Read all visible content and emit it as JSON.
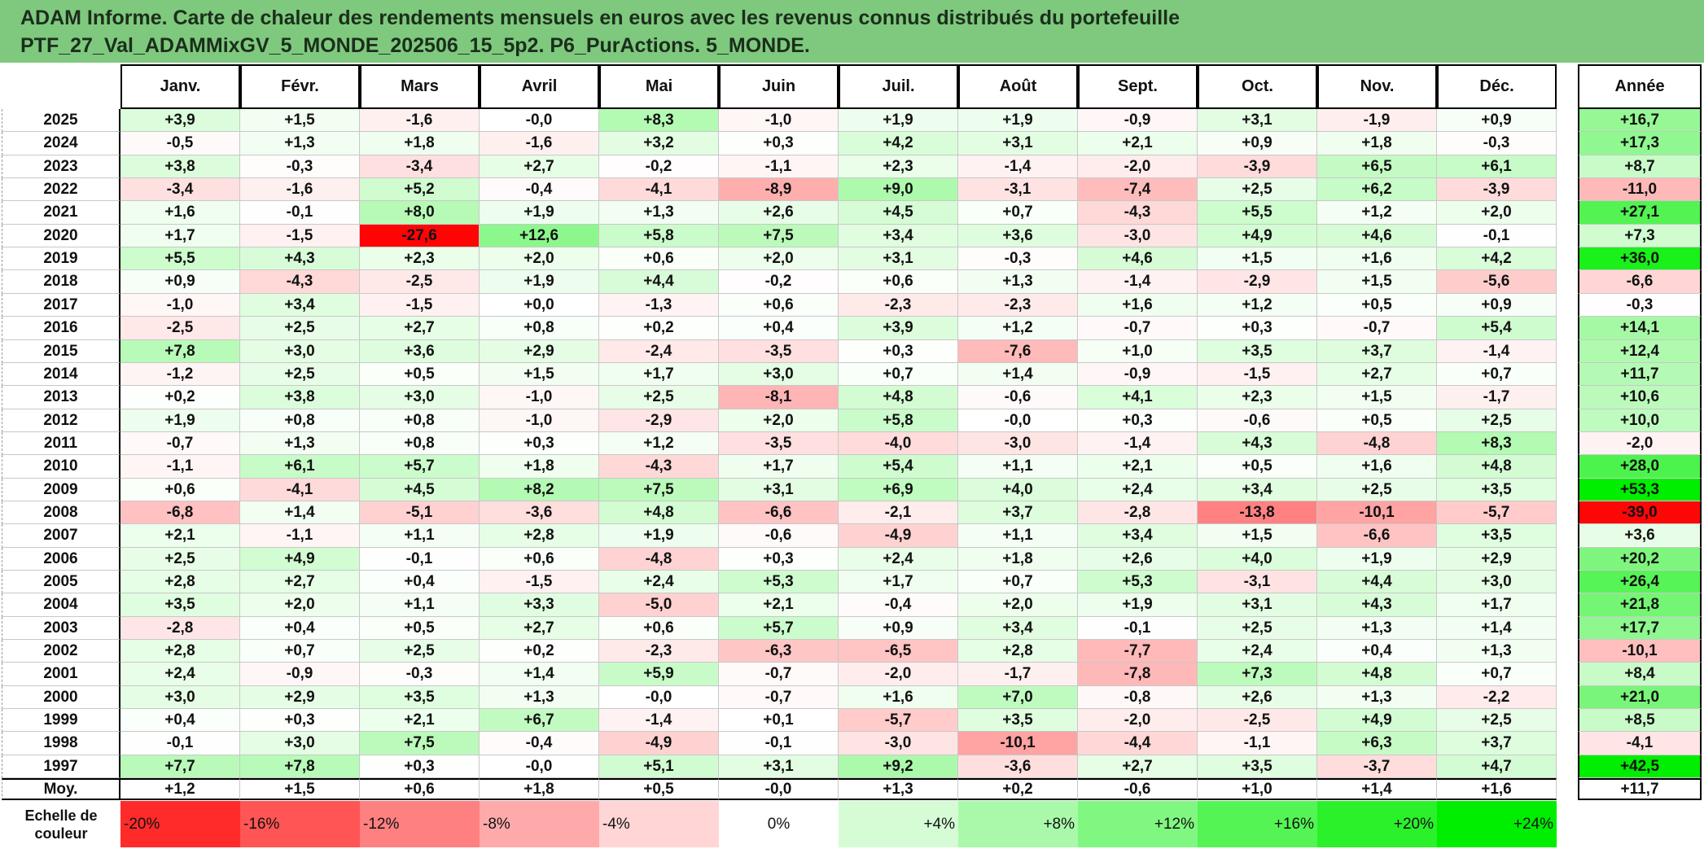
{
  "title": {
    "line1": "ADAM Informe. Carte de chaleur des rendements mensuels en euros avec les revenus connus distribués du portefeuille",
    "line2": "PTF_27_Val_ADAMMixGV_5_MONDE_202506_15_5p2. P6_PurActions. 5_MONDE."
  },
  "colors": {
    "title_bg": "#7ec97e",
    "negative_max": "#ff0000",
    "neutral": "#ffffff",
    "positive_max": "#00ee00"
  },
  "chart_data": {
    "type": "heatmap",
    "months": [
      "Janv.",
      "Févr.",
      "Mars",
      "Avril",
      "Mai",
      "Juin",
      "Juil.",
      "Août",
      "Sept.",
      "Oct.",
      "Nov.",
      "Déc."
    ],
    "year_header": "Année",
    "rows": [
      {
        "year": "2025",
        "values": [
          "+3,9",
          "+1,5",
          "-1,6",
          "-0,0",
          "+8,3",
          "-1,0",
          "+1,9",
          "+1,9",
          "-0,9",
          "+3,1",
          "-1,9",
          "+0,9"
        ],
        "annual": "+16,7"
      },
      {
        "year": "2024",
        "values": [
          "-0,5",
          "+1,3",
          "+1,8",
          "-1,6",
          "+3,2",
          "+0,3",
          "+4,2",
          "+3,1",
          "+2,1",
          "+0,9",
          "+1,8",
          "-0,3"
        ],
        "annual": "+17,3"
      },
      {
        "year": "2023",
        "values": [
          "+3,8",
          "-0,3",
          "-3,4",
          "+2,7",
          "-0,2",
          "-1,1",
          "+2,3",
          "-1,4",
          "-2,0",
          "-3,9",
          "+6,5",
          "+6,1"
        ],
        "annual": "+8,7"
      },
      {
        "year": "2022",
        "values": [
          "-3,4",
          "-1,6",
          "+5,2",
          "-0,4",
          "-4,1",
          "-8,9",
          "+9,0",
          "-3,1",
          "-7,4",
          "+2,5",
          "+6,2",
          "-3,9"
        ],
        "annual": "-11,0"
      },
      {
        "year": "2021",
        "values": [
          "+1,6",
          "-0,1",
          "+8,0",
          "+1,9",
          "+1,3",
          "+2,6",
          "+4,5",
          "+0,7",
          "-4,3",
          "+5,5",
          "+1,2",
          "+2,0"
        ],
        "annual": "+27,1"
      },
      {
        "year": "2020",
        "values": [
          "+1,7",
          "-1,5",
          "-27,6",
          "+12,6",
          "+5,8",
          "+7,5",
          "+3,4",
          "+3,6",
          "-3,0",
          "+4,9",
          "+4,6",
          "-0,1"
        ],
        "annual": "+7,3"
      },
      {
        "year": "2019",
        "values": [
          "+5,5",
          "+4,3",
          "+2,3",
          "+2,0",
          "+0,6",
          "+2,0",
          "+3,1",
          "-0,3",
          "+4,6",
          "+1,5",
          "+1,6",
          "+4,2"
        ],
        "annual": "+36,0"
      },
      {
        "year": "2018",
        "values": [
          "+0,9",
          "-4,3",
          "-2,5",
          "+1,9",
          "+4,4",
          "-0,2",
          "+0,6",
          "+1,3",
          "-1,4",
          "-2,9",
          "+1,5",
          "-5,6"
        ],
        "annual": "-6,6"
      },
      {
        "year": "2017",
        "values": [
          "-1,0",
          "+3,4",
          "-1,5",
          "+0,0",
          "-1,3",
          "+0,6",
          "-2,3",
          "-2,3",
          "+1,6",
          "+1,2",
          "+0,5",
          "+0,9"
        ],
        "annual": "-0,3"
      },
      {
        "year": "2016",
        "values": [
          "-2,5",
          "+2,5",
          "+2,7",
          "+0,8",
          "+0,2",
          "+0,4",
          "+3,9",
          "+1,2",
          "-0,7",
          "+0,3",
          "-0,7",
          "+5,4"
        ],
        "annual": "+14,1"
      },
      {
        "year": "2015",
        "values": [
          "+7,8",
          "+3,0",
          "+3,6",
          "+2,9",
          "-2,4",
          "-3,5",
          "+0,3",
          "-7,6",
          "+1,0",
          "+3,5",
          "+3,7",
          "-1,4"
        ],
        "annual": "+12,4"
      },
      {
        "year": "2014",
        "values": [
          "-1,2",
          "+2,5",
          "+0,5",
          "+1,5",
          "+1,7",
          "+3,0",
          "+0,7",
          "+1,4",
          "-0,9",
          "-1,5",
          "+2,7",
          "+0,7"
        ],
        "annual": "+11,7"
      },
      {
        "year": "2013",
        "values": [
          "+0,2",
          "+3,8",
          "+3,0",
          "-1,0",
          "+2,5",
          "-8,1",
          "+4,8",
          "-0,6",
          "+4,1",
          "+2,3",
          "+1,5",
          "-1,7"
        ],
        "annual": "+10,6"
      },
      {
        "year": "2012",
        "values": [
          "+1,9",
          "+0,8",
          "+0,8",
          "-1,0",
          "-2,9",
          "+2,0",
          "+5,8",
          "-0,0",
          "+0,3",
          "-0,6",
          "+0,5",
          "+2,5"
        ],
        "annual": "+10,0"
      },
      {
        "year": "2011",
        "values": [
          "-0,7",
          "+1,3",
          "+0,8",
          "+0,3",
          "+1,2",
          "-3,5",
          "-4,0",
          "-3,0",
          "-1,4",
          "+4,3",
          "-4,8",
          "+8,3"
        ],
        "annual": "-2,0"
      },
      {
        "year": "2010",
        "values": [
          "-1,1",
          "+6,1",
          "+5,7",
          "+1,8",
          "-4,3",
          "+1,7",
          "+5,4",
          "+1,1",
          "+2,1",
          "+0,5",
          "+1,6",
          "+4,8"
        ],
        "annual": "+28,0"
      },
      {
        "year": "2009",
        "values": [
          "+0,6",
          "-4,1",
          "+4,5",
          "+8,2",
          "+7,5",
          "+3,1",
          "+6,9",
          "+4,0",
          "+2,4",
          "+3,4",
          "+2,5",
          "+3,5"
        ],
        "annual": "+53,3"
      },
      {
        "year": "2008",
        "values": [
          "-6,8",
          "+1,4",
          "-5,1",
          "-3,6",
          "+4,8",
          "-6,6",
          "-2,1",
          "+3,7",
          "-2,8",
          "-13,8",
          "-10,1",
          "-5,7"
        ],
        "annual": "-39,0"
      },
      {
        "year": "2007",
        "values": [
          "+2,1",
          "-1,1",
          "+1,1",
          "+2,8",
          "+1,9",
          "-0,6",
          "-4,9",
          "+1,1",
          "+3,4",
          "+1,5",
          "-6,6",
          "+3,5"
        ],
        "annual": "+3,6"
      },
      {
        "year": "2006",
        "values": [
          "+2,5",
          "+4,9",
          "-0,1",
          "+0,6",
          "-4,8",
          "+0,3",
          "+2,4",
          "+1,8",
          "+2,6",
          "+4,0",
          "+1,9",
          "+2,9"
        ],
        "annual": "+20,2"
      },
      {
        "year": "2005",
        "values": [
          "+2,8",
          "+2,7",
          "+0,4",
          "-1,5",
          "+2,4",
          "+5,3",
          "+1,7",
          "+0,7",
          "+5,3",
          "-3,1",
          "+4,4",
          "+3,0"
        ],
        "annual": "+26,4"
      },
      {
        "year": "2004",
        "values": [
          "+3,5",
          "+2,0",
          "+1,1",
          "+3,3",
          "-5,0",
          "+2,1",
          "-0,4",
          "+2,0",
          "+1,9",
          "+3,1",
          "+4,3",
          "+1,7"
        ],
        "annual": "+21,8"
      },
      {
        "year": "2003",
        "values": [
          "-2,8",
          "+0,4",
          "+0,5",
          "+2,7",
          "+0,6",
          "+5,7",
          "+0,9",
          "+3,4",
          "-0,1",
          "+2,5",
          "+1,3",
          "+1,4"
        ],
        "annual": "+17,7"
      },
      {
        "year": "2002",
        "values": [
          "+2,8",
          "+0,7",
          "+2,5",
          "+0,2",
          "-2,3",
          "-6,3",
          "-6,5",
          "+2,8",
          "-7,7",
          "+2,4",
          "+0,4",
          "+1,3"
        ],
        "annual": "-10,1"
      },
      {
        "year": "2001",
        "values": [
          "+2,4",
          "-0,9",
          "-0,3",
          "+1,4",
          "+5,9",
          "-0,7",
          "-2,0",
          "-1,7",
          "-7,8",
          "+7,3",
          "+4,8",
          "+0,7"
        ],
        "annual": "+8,4"
      },
      {
        "year": "2000",
        "values": [
          "+3,0",
          "+2,9",
          "+3,5",
          "+1,3",
          "-0,0",
          "-0,7",
          "+1,6",
          "+7,0",
          "-0,8",
          "+2,6",
          "+1,3",
          "-2,2"
        ],
        "annual": "+21,0"
      },
      {
        "year": "1999",
        "values": [
          "+0,4",
          "+0,3",
          "+2,1",
          "+6,7",
          "-1,4",
          "+0,1",
          "-5,7",
          "+3,5",
          "-2,0",
          "-2,5",
          "+4,9",
          "+2,5"
        ],
        "annual": "+8,5"
      },
      {
        "year": "1998",
        "values": [
          "-0,1",
          "+3,0",
          "+7,5",
          "-0,4",
          "-4,9",
          "-0,1",
          "-3,0",
          "-10,1",
          "-4,4",
          "-1,1",
          "+6,3",
          "+3,7"
        ],
        "annual": "-4,1"
      },
      {
        "year": "1997",
        "values": [
          "+7,7",
          "+7,8",
          "+0,3",
          "-0,0",
          "+5,1",
          "+3,1",
          "+9,2",
          "-3,6",
          "+2,7",
          "+3,5",
          "-3,7",
          "+4,7"
        ],
        "annual": "+42,5"
      }
    ],
    "average": {
      "label": "Moy.",
      "values": [
        "+1,2",
        "+1,5",
        "+0,6",
        "+1,8",
        "+0,5",
        "-0,0",
        "+1,3",
        "+0,2",
        "-0,6",
        "+1,0",
        "+1,4",
        "+1,6"
      ],
      "annual": "+11,7"
    },
    "scale": {
      "label_line1": "Echelle de",
      "label_line2": "couleur",
      "steps": [
        "-20%",
        "-16%",
        "-12%",
        "-8%",
        "-4%",
        "0%",
        "+4%",
        "+8%",
        "+12%",
        "+16%",
        "+20%",
        "+24%"
      ]
    }
  }
}
